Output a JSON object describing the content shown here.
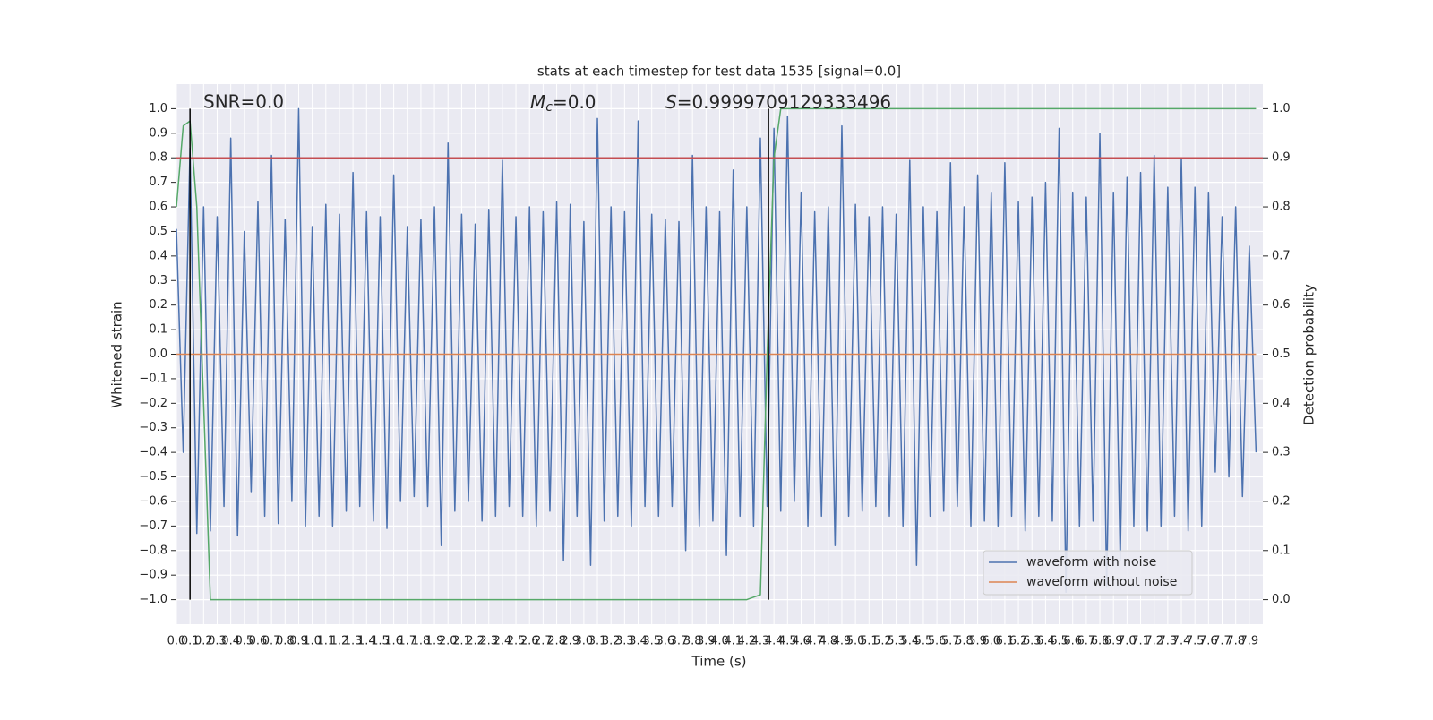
{
  "chart_data": {
    "type": "line",
    "title": "stats at each timestep for test data 1535 [signal=0.0]",
    "xlabel": "Time (s)",
    "ylabel": "Whitened strain",
    "y2label": "Detection probability",
    "annotations": [
      {
        "text": "SNR=0.0"
      },
      {
        "symbol": "M",
        "subscript": "c",
        "text": "=0.0"
      },
      {
        "symbol": "S",
        "text": "=0.9999709129333496"
      }
    ],
    "xlim": [
      0,
      8
    ],
    "ylim": [
      -1.1,
      1.1
    ],
    "y2lim": [
      -0.05,
      1.05
    ],
    "grid": true,
    "legend": "lower right",
    "xticks": [
      {
        "value": 0,
        "label": "0.0"
      },
      {
        "value": 0.1,
        "label": "0.1"
      },
      {
        "value": 0.2,
        "label": "0.2"
      },
      {
        "value": 0.3,
        "label": "0.3"
      },
      {
        "value": 0.4,
        "label": "0.4"
      },
      {
        "value": 0.5,
        "label": "0.5"
      },
      {
        "value": 0.6,
        "label": "0.6"
      },
      {
        "value": 0.7,
        "label": "0.7"
      },
      {
        "value": 0.8,
        "label": "0.8"
      },
      {
        "value": 0.9,
        "label": "0.9"
      },
      {
        "value": 1,
        "label": "1.0"
      },
      {
        "value": 1.1,
        "label": "1.1"
      },
      {
        "value": 1.2,
        "label": "1.2"
      },
      {
        "value": 1.3,
        "label": "1.3"
      },
      {
        "value": 1.4,
        "label": "1.4"
      },
      {
        "value": 1.5,
        "label": "1.5"
      },
      {
        "value": 1.6,
        "label": "1.6"
      },
      {
        "value": 1.7,
        "label": "1.7"
      },
      {
        "value": 1.8,
        "label": "1.8"
      },
      {
        "value": 1.9,
        "label": "1.9"
      },
      {
        "value": 2,
        "label": "2.0"
      },
      {
        "value": 2.1,
        "label": "2.1"
      },
      {
        "value": 2.2,
        "label": "2.2"
      },
      {
        "value": 2.3,
        "label": "2.3"
      },
      {
        "value": 2.4,
        "label": "2.4"
      },
      {
        "value": 2.5,
        "label": "2.5"
      },
      {
        "value": 2.6,
        "label": "2.6"
      },
      {
        "value": 2.7,
        "label": "2.7"
      },
      {
        "value": 2.8,
        "label": "2.8"
      },
      {
        "value": 2.9,
        "label": "2.9"
      },
      {
        "value": 3,
        "label": "3.0"
      },
      {
        "value": 3.1,
        "label": "3.1"
      },
      {
        "value": 3.2,
        "label": "3.2"
      },
      {
        "value": 3.3,
        "label": "3.3"
      },
      {
        "value": 3.4,
        "label": "3.4"
      },
      {
        "value": 3.5,
        "label": "3.5"
      },
      {
        "value": 3.6,
        "label": "3.6"
      },
      {
        "value": 3.7,
        "label": "3.7"
      },
      {
        "value": 3.8,
        "label": "3.8"
      },
      {
        "value": 3.9,
        "label": "3.9"
      },
      {
        "value": 4,
        "label": "4.0"
      },
      {
        "value": 4.1,
        "label": "4.1"
      },
      {
        "value": 4.2,
        "label": "4.2"
      },
      {
        "value": 4.3,
        "label": "4.3"
      },
      {
        "value": 4.4,
        "label": "4.4"
      },
      {
        "value": 4.5,
        "label": "4.5"
      },
      {
        "value": 4.6,
        "label": "4.6"
      },
      {
        "value": 4.7,
        "label": "4.7"
      },
      {
        "value": 4.8,
        "label": "4.8"
      },
      {
        "value": 4.9,
        "label": "4.9"
      },
      {
        "value": 5,
        "label": "5.0"
      },
      {
        "value": 5.1,
        "label": "5.1"
      },
      {
        "value": 5.2,
        "label": "5.2"
      },
      {
        "value": 5.3,
        "label": "5.3"
      },
      {
        "value": 5.4,
        "label": "5.4"
      },
      {
        "value": 5.5,
        "label": "5.5"
      },
      {
        "value": 5.6,
        "label": "5.6"
      },
      {
        "value": 5.7,
        "label": "5.7"
      },
      {
        "value": 5.8,
        "label": "5.8"
      },
      {
        "value": 5.9,
        "label": "5.9"
      },
      {
        "value": 6,
        "label": "6.0"
      },
      {
        "value": 6.1,
        "label": "6.1"
      },
      {
        "value": 6.2,
        "label": "6.2"
      },
      {
        "value": 6.3,
        "label": "6.3"
      },
      {
        "value": 6.4,
        "label": "6.4"
      },
      {
        "value": 6.5,
        "label": "6.5"
      },
      {
        "value": 6.6,
        "label": "6.6"
      },
      {
        "value": 6.7,
        "label": "6.7"
      },
      {
        "value": 6.8,
        "label": "6.8"
      },
      {
        "value": 6.9,
        "label": "6.9"
      },
      {
        "value": 7,
        "label": "7.0"
      },
      {
        "value": 7.1,
        "label": "7.1"
      },
      {
        "value": 7.2,
        "label": "7.2"
      },
      {
        "value": 7.3,
        "label": "7.3"
      },
      {
        "value": 7.4,
        "label": "7.4"
      },
      {
        "value": 7.5,
        "label": "7.5"
      },
      {
        "value": 7.6,
        "label": "7.6"
      },
      {
        "value": 7.7,
        "label": "7.7"
      },
      {
        "value": 7.8,
        "label": "7.8"
      },
      {
        "value": 7.9,
        "label": "7.9"
      }
    ],
    "yticks": [
      {
        "value": -1,
        "label": "−1.0"
      },
      {
        "value": -0.9,
        "label": "−0.9"
      },
      {
        "value": -0.8,
        "label": "−0.8"
      },
      {
        "value": -0.7,
        "label": "−0.7"
      },
      {
        "value": -0.6,
        "label": "−0.6"
      },
      {
        "value": -0.5,
        "label": "−0.5"
      },
      {
        "value": -0.4,
        "label": "−0.4"
      },
      {
        "value": -0.3,
        "label": "−0.3"
      },
      {
        "value": -0.2,
        "label": "−0.2"
      },
      {
        "value": -0.1,
        "label": "−0.1"
      },
      {
        "value": 0,
        "label": "0.0"
      },
      {
        "value": 0.1,
        "label": "0.1"
      },
      {
        "value": 0.2,
        "label": "0.2"
      },
      {
        "value": 0.3,
        "label": "0.3"
      },
      {
        "value": 0.4,
        "label": "0.4"
      },
      {
        "value": 0.5,
        "label": "0.5"
      },
      {
        "value": 0.6,
        "label": "0.6"
      },
      {
        "value": 0.7,
        "label": "0.7"
      },
      {
        "value": 0.8,
        "label": "0.8"
      },
      {
        "value": 0.9,
        "label": "0.9"
      },
      {
        "value": 1,
        "label": "1.0"
      }
    ],
    "y2ticks": [
      {
        "value": 0,
        "label": "0.0"
      },
      {
        "value": 0.1,
        "label": "0.1"
      },
      {
        "value": 0.2,
        "label": "0.2"
      },
      {
        "value": 0.3,
        "label": "0.3"
      },
      {
        "value": 0.4,
        "label": "0.4"
      },
      {
        "value": 0.5,
        "label": "0.5"
      },
      {
        "value": 0.6,
        "label": "0.6"
      },
      {
        "value": 0.7,
        "label": "0.7"
      },
      {
        "value": 0.8,
        "label": "0.8"
      },
      {
        "value": 0.9,
        "label": "0.9"
      },
      {
        "value": 1,
        "label": "1.0"
      }
    ],
    "hline": {
      "y": 0.8,
      "color": "#c44e52"
    },
    "vlines": {
      "x": [
        0.1,
        4.36
      ],
      "ymin": -1,
      "ymax": 1,
      "color": "#000000"
    },
    "series": [
      {
        "name": "waveform with noise",
        "color": "#4c72b0",
        "x": [
          0,
          0.05,
          0.1,
          0.15,
          0.2,
          0.25,
          0.3,
          0.35,
          0.4,
          0.45,
          0.5,
          0.55,
          0.6,
          0.65,
          0.7,
          0.75,
          0.8,
          0.85,
          0.9,
          0.95,
          1,
          1.05,
          1.1,
          1.15,
          1.2,
          1.25,
          1.3,
          1.35,
          1.4,
          1.45,
          1.5,
          1.55,
          1.6,
          1.65,
          1.7,
          1.75,
          1.8,
          1.85,
          1.9,
          1.95,
          2,
          2.05,
          2.1,
          2.15,
          2.2,
          2.25,
          2.3,
          2.35,
          2.4,
          2.45,
          2.5,
          2.55,
          2.6,
          2.65,
          2.7,
          2.75,
          2.8,
          2.85,
          2.9,
          2.95,
          3,
          3.05,
          3.1,
          3.15,
          3.2,
          3.25,
          3.3,
          3.35,
          3.4,
          3.45,
          3.5,
          3.55,
          3.6,
          3.65,
          3.7,
          3.75,
          3.8,
          3.85,
          3.9,
          3.95,
          4,
          4.05,
          4.1,
          4.15,
          4.2,
          4.25,
          4.3,
          4.35,
          4.4,
          4.45,
          4.5,
          4.55,
          4.6,
          4.65,
          4.7,
          4.75,
          4.8,
          4.85,
          4.9,
          4.95,
          5,
          5.05,
          5.1,
          5.15,
          5.2,
          5.25,
          5.3,
          5.35,
          5.4,
          5.45,
          5.5,
          5.55,
          5.6,
          5.65,
          5.7,
          5.75,
          5.8,
          5.85,
          5.9,
          5.95,
          6,
          6.05,
          6.1,
          6.15,
          6.2,
          6.25,
          6.3,
          6.35,
          6.4,
          6.45,
          6.5,
          6.55,
          6.6,
          6.65,
          6.7,
          6.75,
          6.8,
          6.85,
          6.9,
          6.95,
          7,
          7.05,
          7.1,
          7.15,
          7.2,
          7.25,
          7.3,
          7.35,
          7.4,
          7.45,
          7.5,
          7.55,
          7.6,
          7.65,
          7.7,
          7.75,
          7.8,
          7.85,
          7.9,
          7.95
        ],
        "values": [
          0.51,
          -0.4,
          0.84,
          -0.73,
          0.6,
          -0.72,
          0.56,
          -0.62,
          0.88,
          -0.74,
          0.5,
          -0.56,
          0.62,
          -0.66,
          0.81,
          -0.69,
          0.55,
          -0.6,
          1.0,
          -0.7,
          0.52,
          -0.66,
          0.61,
          -0.7,
          0.57,
          -0.64,
          0.74,
          -0.62,
          0.58,
          -0.68,
          0.56,
          -0.71,
          0.73,
          -0.6,
          0.52,
          -0.58,
          0.55,
          -0.62,
          0.6,
          -0.78,
          0.86,
          -0.64,
          0.57,
          -0.6,
          0.53,
          -0.68,
          0.59,
          -0.66,
          0.79,
          -0.62,
          0.56,
          -0.66,
          0.6,
          -0.7,
          0.58,
          -0.64,
          0.62,
          -0.84,
          0.61,
          -0.66,
          0.54,
          -0.86,
          0.96,
          -0.68,
          0.6,
          -0.66,
          0.58,
          -0.7,
          0.95,
          -0.62,
          0.57,
          -0.66,
          0.55,
          -0.62,
          0.54,
          -0.8,
          0.81,
          -0.7,
          0.6,
          -0.68,
          0.58,
          -0.82,
          0.75,
          -0.66,
          0.6,
          -0.7,
          0.88,
          -0.62,
          0.92,
          -0.64,
          0.97,
          -0.6,
          0.66,
          -0.7,
          0.58,
          -0.66,
          0.6,
          -0.78,
          0.93,
          -0.66,
          0.61,
          -0.64,
          0.56,
          -0.62,
          0.6,
          -0.66,
          0.57,
          -0.7,
          0.79,
          -0.86,
          0.6,
          -0.66,
          0.58,
          -0.64,
          0.78,
          -0.62,
          0.6,
          -0.7,
          0.73,
          -0.68,
          0.66,
          -0.7,
          0.78,
          -0.66,
          0.62,
          -0.72,
          0.64,
          -0.66,
          0.7,
          -0.68,
          0.92,
          -0.97,
          0.66,
          -0.7,
          0.64,
          -0.68,
          0.9,
          -0.95,
          0.66,
          -0.84,
          0.72,
          -0.7,
          0.74,
          -0.72,
          0.81,
          -0.7,
          0.68,
          -0.66,
          0.8,
          -0.72,
          0.68,
          -0.7,
          0.66,
          -0.48,
          0.56,
          -0.5,
          0.6,
          -0.58,
          0.44,
          -0.4
        ]
      },
      {
        "name": "waveform without noise",
        "color": "#dd8452",
        "x": [
          0,
          7.95
        ],
        "values": [
          0,
          0
        ]
      },
      {
        "color": "#55a868",
        "axis": "y2",
        "x": [
          0,
          0.05,
          0.1,
          0.15,
          0.2,
          0.25,
          0.3,
          4.2,
          4.25,
          4.3,
          4.35,
          4.4,
          4.45,
          7.95
        ],
        "values": [
          0.8,
          0.965,
          0.975,
          0.8,
          0.4,
          0.0,
          0.0,
          0.0,
          0.005,
          0.01,
          0.5,
          0.9,
          1.0,
          1.0
        ]
      }
    ]
  }
}
